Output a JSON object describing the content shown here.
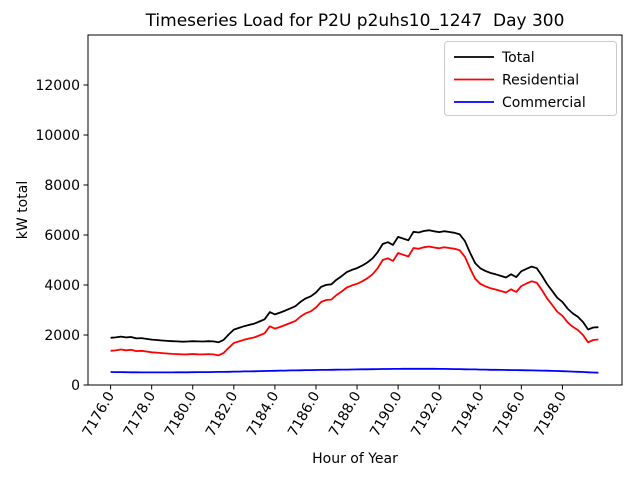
{
  "chart_data": {
    "type": "line",
    "title": "Timeseries Load for P2U p2uhs10_1247  Day 300",
    "xlabel": "Hour of Year",
    "ylabel": "kW total",
    "grid": false,
    "legend": {
      "position": "upper right",
      "entries": [
        "Total",
        "Residential",
        "Commercial"
      ]
    },
    "xlim": [
      7174.9,
      7200.9
    ],
    "ylim": [
      0,
      14000
    ],
    "xtick_values": [
      7176,
      7178,
      7180,
      7182,
      7184,
      7186,
      7188,
      7190,
      7192,
      7194,
      7196,
      7198
    ],
    "xtick_labels": [
      "7176.0",
      "7178.0",
      "7180.0",
      "7182.0",
      "7184.0",
      "7186.0",
      "7188.0",
      "7190.0",
      "7192.0",
      "7194.0",
      "7196.0",
      "7198.0"
    ],
    "ytick_values": [
      0,
      2000,
      4000,
      6000,
      8000,
      10000,
      12000
    ],
    "ytick_labels": [
      "0",
      "2000",
      "4000",
      "6000",
      "8000",
      "10000",
      "12000"
    ],
    "x": [
      7176.0,
      7176.25,
      7176.5,
      7176.75,
      7177.0,
      7177.25,
      7177.5,
      7177.75,
      7178.0,
      7178.25,
      7178.5,
      7178.75,
      7179.0,
      7179.25,
      7179.5,
      7179.75,
      7180.0,
      7180.25,
      7180.5,
      7180.75,
      7181.0,
      7181.25,
      7181.5,
      7181.75,
      7182.0,
      7182.25,
      7182.5,
      7182.75,
      7183.0,
      7183.25,
      7183.5,
      7183.75,
      7184.0,
      7184.25,
      7184.5,
      7184.75,
      7185.0,
      7185.25,
      7185.5,
      7185.75,
      7186.0,
      7186.25,
      7186.5,
      7186.75,
      7187.0,
      7187.25,
      7187.5,
      7187.75,
      7188.0,
      7188.25,
      7188.5,
      7188.75,
      7189.0,
      7189.25,
      7189.5,
      7189.75,
      7190.0,
      7190.25,
      7190.5,
      7190.75,
      7191.0,
      7191.25,
      7191.5,
      7191.75,
      7192.0,
      7192.25,
      7192.5,
      7192.75,
      7193.0,
      7193.25,
      7193.5,
      7193.75,
      7194.0,
      7194.25,
      7194.5,
      7194.75,
      7195.0,
      7195.25,
      7195.5,
      7195.75,
      7196.0,
      7196.25,
      7196.5,
      7196.75,
      7197.0,
      7197.25,
      7197.5,
      7197.75,
      7198.0,
      7198.25,
      7198.5,
      7198.75,
      7199.0,
      7199.25,
      7199.5,
      7199.75
    ],
    "series": [
      {
        "name": "Total",
        "color": "#000000",
        "values": [
          1890,
          1903,
          1935,
          1902,
          1920,
          1863,
          1876,
          1845,
          1815,
          1799,
          1779,
          1765,
          1751,
          1742,
          1733,
          1740,
          1752,
          1744,
          1741,
          1753,
          1745,
          1708,
          1806,
          2020,
          2214,
          2283,
          2352,
          2406,
          2455,
          2540,
          2630,
          2915,
          2825,
          2894,
          2978,
          3062,
          3151,
          3330,
          3464,
          3547,
          3700,
          3923,
          4006,
          4029,
          4212,
          4355,
          4518,
          4606,
          4674,
          4777,
          4900,
          5063,
          5306,
          5639,
          5711,
          5603,
          5925,
          5857,
          5788,
          6129,
          6100,
          6160,
          6189,
          6148,
          6116,
          6154,
          6121,
          6088,
          6024,
          5760,
          5296,
          4872,
          4668,
          4564,
          4480,
          4427,
          4364,
          4301,
          4428,
          4315,
          4552,
          4649,
          4735,
          4671,
          4376,
          4041,
          3765,
          3489,
          3322,
          3054,
          2866,
          2728,
          2519,
          2220,
          2301,
          2312
        ]
      },
      {
        "name": "Residential",
        "color": "#ff0000",
        "values": [
          1370,
          1385,
          1420,
          1390,
          1410,
          1355,
          1370,
          1340,
          1310,
          1295,
          1275,
          1260,
          1245,
          1235,
          1225,
          1230,
          1240,
          1230,
          1225,
          1235,
          1225,
          1185,
          1280,
          1490,
          1680,
          1745,
          1810,
          1860,
          1905,
          1985,
          2070,
          2350,
          2255,
          2320,
          2400,
          2480,
          2565,
          2740,
          2870,
          2950,
          3100,
          3320,
          3400,
          3420,
          3600,
          3740,
          3900,
          3985,
          4050,
          4150,
          4270,
          4430,
          4670,
          5000,
          5070,
          4960,
          5280,
          5210,
          5140,
          5480,
          5450,
          5510,
          5540,
          5500,
          5470,
          5510,
          5480,
          5450,
          5390,
          5130,
          4670,
          4250,
          4050,
          3950,
          3870,
          3820,
          3760,
          3700,
          3830,
          3720,
          3960,
          4060,
          4150,
          4090,
          3800,
          3470,
          3200,
          2930,
          2770,
          2510,
          2330,
          2200,
          2000,
          1710,
          1800,
          1820
        ]
      },
      {
        "name": "Commercial",
        "color": "#0000ff",
        "values": [
          520,
          518,
          515,
          512,
          510,
          508,
          506,
          505,
          505,
          504,
          504,
          505,
          506,
          507,
          508,
          510,
          512,
          514,
          516,
          518,
          520,
          523,
          526,
          530,
          534,
          538,
          542,
          546,
          550,
          555,
          560,
          565,
          570,
          574,
          578,
          582,
          586,
          590,
          594,
          597,
          600,
          603,
          606,
          609,
          612,
          615,
          618,
          621,
          624,
          627,
          630,
          633,
          636,
          639,
          641,
          643,
          645,
          647,
          648,
          649,
          650,
          650,
          649,
          648,
          646,
          644,
          641,
          638,
          634,
          630,
          626,
          622,
          618,
          614,
          610,
          607,
          604,
          601,
          598,
          595,
          592,
          589,
          585,
          581,
          576,
          571,
          565,
          559,
          552,
          544,
          536,
          528,
          519,
          510,
          501,
          492
        ]
      }
    ]
  }
}
